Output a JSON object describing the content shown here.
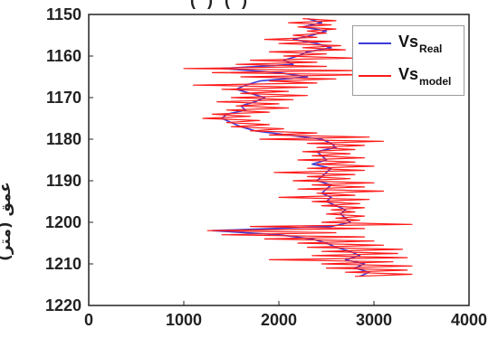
{
  "chart_data": {
    "type": "line",
    "title": "",
    "ylabel": "عمق (متر)",
    "xlabel": "",
    "xlim": [
      0,
      4000
    ],
    "ylim": [
      1150,
      1220
    ],
    "y_inverted": true,
    "xticks": [
      0,
      1000,
      2000,
      3000,
      4000
    ],
    "yticks": [
      1150,
      1160,
      1170,
      1180,
      1190,
      1200,
      1210,
      1220
    ],
    "grid": false,
    "legend_position": "top-right",
    "series": [
      {
        "name": "Vs_Real",
        "label_main": "Vs",
        "label_sub": "Real",
        "color": "#3b3bd9",
        "points": [
          [
            2300,
            1151
          ],
          [
            2450,
            1152
          ],
          [
            2250,
            1153
          ],
          [
            2500,
            1154
          ],
          [
            2350,
            1155
          ],
          [
            2150,
            1156
          ],
          [
            2400,
            1157
          ],
          [
            2550,
            1158
          ],
          [
            2300,
            1159
          ],
          [
            2200,
            1160
          ],
          [
            2050,
            1161
          ],
          [
            2150,
            1162
          ],
          [
            1400,
            1163
          ],
          [
            2000,
            1164
          ],
          [
            2300,
            1165
          ],
          [
            1800,
            1166
          ],
          [
            1650,
            1167
          ],
          [
            1550,
            1168
          ],
          [
            1700,
            1169
          ],
          [
            1850,
            1170
          ],
          [
            1750,
            1171
          ],
          [
            1600,
            1172
          ],
          [
            1650,
            1173
          ],
          [
            1450,
            1174
          ],
          [
            1400,
            1175
          ],
          [
            1500,
            1176
          ],
          [
            1600,
            1177
          ],
          [
            1750,
            1178
          ],
          [
            2100,
            1179
          ],
          [
            2450,
            1180
          ],
          [
            2550,
            1181
          ],
          [
            2600,
            1182
          ],
          [
            2400,
            1183
          ],
          [
            2450,
            1184
          ],
          [
            2500,
            1185
          ],
          [
            2350,
            1186
          ],
          [
            2550,
            1187
          ],
          [
            2500,
            1188
          ],
          [
            2450,
            1189
          ],
          [
            2400,
            1190
          ],
          [
            2550,
            1191
          ],
          [
            2500,
            1192
          ],
          [
            2450,
            1193
          ],
          [
            2550,
            1194
          ],
          [
            2500,
            1195
          ],
          [
            2600,
            1196
          ],
          [
            2700,
            1197
          ],
          [
            2650,
            1198
          ],
          [
            2700,
            1199
          ],
          [
            2750,
            1200
          ],
          [
            2550,
            1201
          ],
          [
            1300,
            1202
          ],
          [
            2000,
            1203
          ],
          [
            2350,
            1204
          ],
          [
            2500,
            1205
          ],
          [
            2600,
            1206
          ],
          [
            2750,
            1207
          ],
          [
            2850,
            1208
          ],
          [
            2700,
            1209
          ],
          [
            2900,
            1210
          ],
          [
            2800,
            1211
          ],
          [
            2950,
            1212
          ],
          [
            2850,
            1213
          ]
        ]
      },
      {
        "name": "Vs_model",
        "label_main": "Vs",
        "label_sub": "model",
        "color": "#ff1a1a",
        "points": [
          [
            2250,
            1151
          ],
          [
            2600,
            1151.5
          ],
          [
            2100,
            1152
          ],
          [
            2550,
            1152.5
          ],
          [
            2200,
            1153
          ],
          [
            2600,
            1153.5
          ],
          [
            2300,
            1154
          ],
          [
            2500,
            1154.5
          ],
          [
            2150,
            1155
          ],
          [
            2400,
            1155.5
          ],
          [
            1850,
            1156
          ],
          [
            2550,
            1156.5
          ],
          [
            2000,
            1157
          ],
          [
            2650,
            1157.5
          ],
          [
            2250,
            1158
          ],
          [
            2700,
            1158.5
          ],
          [
            1900,
            1159
          ],
          [
            2500,
            1159.5
          ],
          [
            2050,
            1160
          ],
          [
            2800,
            1160.5
          ],
          [
            1700,
            1161
          ],
          [
            2400,
            1161.5
          ],
          [
            1550,
            1162
          ],
          [
            2500,
            1162.5
          ],
          [
            1000,
            1163
          ],
          [
            2800,
            1163.5
          ],
          [
            1300,
            1164
          ],
          [
            2900,
            1164.5
          ],
          [
            1600,
            1165
          ],
          [
            2600,
            1165.5
          ],
          [
            1900,
            1166
          ],
          [
            2400,
            1166.5
          ],
          [
            1100,
            1167
          ],
          [
            2300,
            1167.5
          ],
          [
            1400,
            1168
          ],
          [
            2100,
            1168.5
          ],
          [
            1600,
            1169
          ],
          [
            2300,
            1169.5
          ],
          [
            1500,
            1170
          ],
          [
            2150,
            1170.5
          ],
          [
            1350,
            1171
          ],
          [
            2000,
            1171.5
          ],
          [
            1550,
            1172
          ],
          [
            2100,
            1172.5
          ],
          [
            1450,
            1173
          ],
          [
            1900,
            1173.5
          ],
          [
            1300,
            1174
          ],
          [
            1700,
            1174.5
          ],
          [
            1200,
            1175
          ],
          [
            1800,
            1175.5
          ],
          [
            1450,
            1176
          ],
          [
            1900,
            1176.5
          ],
          [
            1500,
            1177
          ],
          [
            2050,
            1177.5
          ],
          [
            1700,
            1178
          ],
          [
            2400,
            1178.5
          ],
          [
            1900,
            1179
          ],
          [
            2950,
            1179.5
          ],
          [
            1800,
            1180
          ],
          [
            3100,
            1180.5
          ],
          [
            2300,
            1181
          ],
          [
            2900,
            1181.5
          ],
          [
            2400,
            1182
          ],
          [
            2800,
            1182.5
          ],
          [
            2250,
            1183
          ],
          [
            2750,
            1183.5
          ],
          [
            2350,
            1184
          ],
          [
            2900,
            1184.5
          ],
          [
            2200,
            1185
          ],
          [
            2800,
            1185.5
          ],
          [
            2400,
            1186
          ],
          [
            3000,
            1186.5
          ],
          [
            2300,
            1187
          ],
          [
            2900,
            1187.5
          ],
          [
            1950,
            1188
          ],
          [
            2800,
            1188.5
          ],
          [
            2300,
            1189
          ],
          [
            2750,
            1189.5
          ],
          [
            2150,
            1190
          ],
          [
            3000,
            1190.5
          ],
          [
            2350,
            1191
          ],
          [
            2900,
            1191.5
          ],
          [
            2200,
            1192
          ],
          [
            3100,
            1192.5
          ],
          [
            2400,
            1193
          ],
          [
            2800,
            1193.5
          ],
          [
            2000,
            1194
          ],
          [
            2950,
            1194.5
          ],
          [
            2350,
            1195
          ],
          [
            2850,
            1195.5
          ],
          [
            2450,
            1196
          ],
          [
            2900,
            1196.5
          ],
          [
            2550,
            1197
          ],
          [
            2800,
            1197.5
          ],
          [
            2500,
            1198
          ],
          [
            2900,
            1198.5
          ],
          [
            2600,
            1199
          ],
          [
            2850,
            1199.5
          ],
          [
            2450,
            1200
          ],
          [
            3400,
            1200.5
          ],
          [
            1700,
            1201
          ],
          [
            2900,
            1201.5
          ],
          [
            1250,
            1202
          ],
          [
            2600,
            1202.5
          ],
          [
            1400,
            1203
          ],
          [
            2900,
            1203.5
          ],
          [
            1850,
            1204
          ],
          [
            3000,
            1204.5
          ],
          [
            2200,
            1205
          ],
          [
            3100,
            1205.5
          ],
          [
            2300,
            1206
          ],
          [
            3300,
            1206.5
          ],
          [
            2450,
            1207
          ],
          [
            3250,
            1207.5
          ],
          [
            2350,
            1208
          ],
          [
            3350,
            1208.5
          ],
          [
            1900,
            1209
          ],
          [
            3200,
            1209.5
          ],
          [
            2450,
            1210
          ],
          [
            3400,
            1210.5
          ],
          [
            2500,
            1211
          ],
          [
            3350,
            1211.5
          ],
          [
            2700,
            1212
          ],
          [
            3400,
            1212.5
          ],
          [
            2800,
            1213
          ]
        ]
      }
    ]
  },
  "top_cut_text": "( ) ( )"
}
